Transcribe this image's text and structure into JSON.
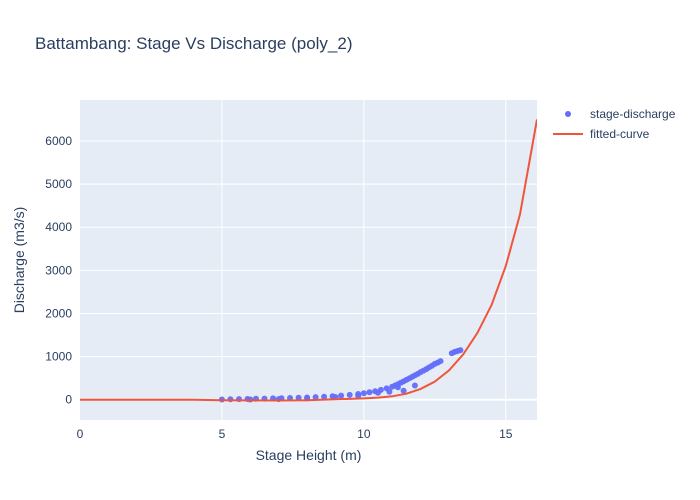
{
  "chart_data": {
    "type": "scatter",
    "title": "Battambang: Stage Vs Discharge (poly_2)",
    "xlabel": "Stage Height (m)",
    "ylabel": "Discharge (m3/s)",
    "xlim": [
      0,
      16.1
    ],
    "ylim": [
      -470,
      6950
    ],
    "x_ticks": [
      0,
      5,
      10,
      15
    ],
    "y_ticks": [
      0,
      1000,
      2000,
      3000,
      4000,
      5000,
      6000
    ],
    "grid": true,
    "legend_position": "top-right",
    "colors": {
      "plot_bg": "#e5ecf6",
      "grid": "#ffffff",
      "scatter": "#636efa",
      "curve": "#ef553b",
      "text": "#2a3f5f"
    },
    "series": [
      {
        "name": "stage-discharge",
        "mode": "markers",
        "x": [
          5.0,
          5.3,
          5.6,
          5.9,
          6.2,
          6.5,
          6.8,
          7.1,
          7.4,
          7.7,
          8.0,
          8.3,
          8.6,
          8.9,
          9.2,
          9.5,
          9.8,
          10.0,
          10.2,
          10.4,
          10.6,
          10.8,
          11.0,
          11.1,
          11.2,
          11.3,
          11.4,
          11.5,
          11.6,
          11.7,
          11.8,
          11.9,
          12.0,
          12.1,
          12.2,
          12.3,
          12.4,
          12.5,
          12.6,
          12.7,
          13.1,
          13.2,
          13.3,
          13.4,
          11.2,
          11.4,
          11.8,
          10.5,
          10.9,
          9.8,
          9.0,
          8.0,
          7.0,
          6.0
        ],
        "y": [
          5,
          10,
          14,
          18,
          22,
          26,
          30,
          35,
          40,
          45,
          52,
          60,
          70,
          82,
          95,
          112,
          132,
          150,
          172,
          198,
          228,
          262,
          300,
          330,
          360,
          395,
          425,
          460,
          495,
          530,
          565,
          600,
          640,
          675,
          710,
          750,
          790,
          830,
          860,
          895,
          1080,
          1110,
          1130,
          1150,
          290,
          210,
          330,
          160,
          185,
          90,
          60,
          30,
          15,
          5
        ]
      },
      {
        "name": "fitted-curve",
        "mode": "lines",
        "x": [
          0,
          1,
          2,
          3,
          4,
          5,
          6,
          7,
          7.5,
          8,
          8.5,
          9,
          9.5,
          10,
          10.5,
          11,
          11.5,
          12,
          12.5,
          13,
          13.5,
          14,
          14.5,
          15,
          15.5,
          16.1
        ],
        "y": [
          0,
          0,
          0,
          0,
          0,
          -10,
          -15,
          -18,
          -15,
          -10,
          0,
          10,
          20,
          30,
          50,
          80,
          140,
          250,
          420,
          680,
          1050,
          1550,
          2200,
          3100,
          4300,
          6500
        ]
      }
    ]
  }
}
